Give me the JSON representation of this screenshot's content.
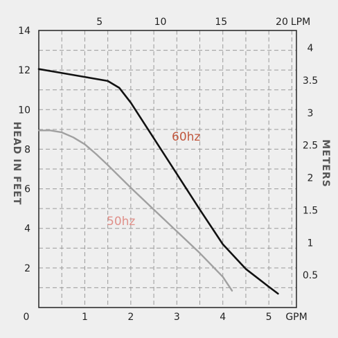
{
  "chart_data": {
    "type": "line",
    "xlabel": "GPM",
    "x2label": "LPM",
    "ylabel": "HEAD IN FEET",
    "y2label": "METERS",
    "xlim": [
      0,
      5.6
    ],
    "ylim": [
      0,
      14
    ],
    "x_ticks": [
      "0",
      "1",
      "2",
      "3",
      "4",
      "5"
    ],
    "x_tick_values": [
      0,
      1,
      2,
      3,
      4,
      5
    ],
    "x2_ticks": [
      "5",
      "10",
      "15",
      "20"
    ],
    "x2_tick_values": [
      5,
      10,
      15,
      20
    ],
    "y_ticks": [
      "2",
      "4",
      "6",
      "8",
      "10",
      "12",
      "14"
    ],
    "y_tick_values": [
      2,
      4,
      6,
      8,
      10,
      12,
      14
    ],
    "y2_ticks": [
      "0.5",
      "1",
      "1.5",
      "2",
      "2.5",
      "3",
      "3.5",
      "4"
    ],
    "y2_tick_values": [
      0.5,
      1,
      1.5,
      2,
      2.5,
      3,
      3.5,
      4
    ],
    "grid": true,
    "series": [
      {
        "name": "60hz",
        "color": "#111111",
        "label_color": "#c0573e",
        "x": [
          0,
          0.5,
          1.0,
          1.5,
          1.75,
          2.0,
          2.5,
          3.0,
          3.5,
          4.0,
          4.5,
          5.0,
          5.2
        ],
        "y": [
          12.05,
          11.85,
          11.65,
          11.45,
          11.1,
          10.35,
          8.55,
          6.75,
          4.95,
          3.2,
          1.95,
          1.05,
          0.7
        ]
      },
      {
        "name": "50hz",
        "color": "#a0a0a0",
        "label_color": "#e0908a",
        "x": [
          0,
          0.25,
          0.5,
          0.75,
          1.0,
          1.25,
          1.5,
          2.0,
          2.5,
          3.0,
          3.5,
          4.0,
          4.2
        ],
        "y": [
          8.95,
          8.95,
          8.85,
          8.6,
          8.25,
          7.75,
          7.2,
          6.05,
          4.95,
          3.85,
          2.75,
          1.55,
          0.85
        ]
      }
    ]
  }
}
